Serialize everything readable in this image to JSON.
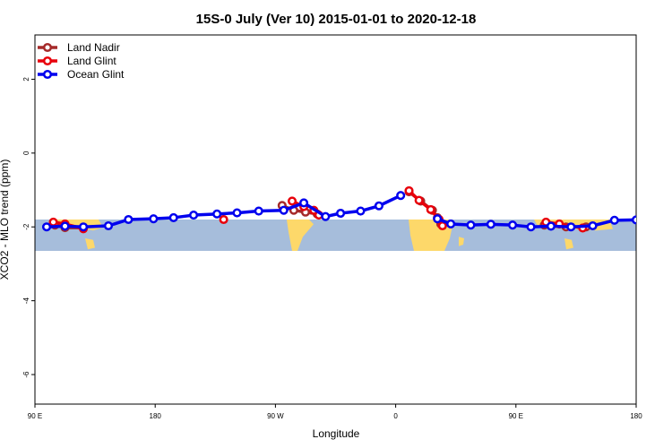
{
  "chart_data": {
    "type": "line",
    "title": "15S-0 July (Ver 10)   2015-01-01 to 2020-12-18",
    "xlabel": "Longitude",
    "ylabel": "XCO2 - MLO trend (ppm)",
    "xlim": [
      90,
      450
    ],
    "ylim": [
      -6.8,
      3.2
    ],
    "x_ticks": [
      {
        "value": 90,
        "label": "90 E"
      },
      {
        "value": 162,
        "label": "180"
      },
      {
        "value": 234,
        "label": "90 W"
      },
      {
        "value": 306,
        "label": "0"
      },
      {
        "value": 378,
        "label": "90 E"
      },
      {
        "value": 450,
        "label": "180"
      }
    ],
    "y_ticks": [
      {
        "value": 2,
        "label": "2"
      },
      {
        "value": 0,
        "label": "0"
      },
      {
        "value": -2,
        "label": "-2"
      },
      {
        "value": -4,
        "label": "-4"
      },
      {
        "value": -6,
        "label": "-6"
      }
    ],
    "legend_position": "top-left",
    "grid": false,
    "map_band": {
      "y_top": -1.8,
      "y_bottom": -2.65,
      "ocean_color": "#a6bddb",
      "land_color": "#fdd86a"
    },
    "series": [
      {
        "name": "Land Nadir",
        "color": "#a52a2a",
        "segments": [
          [
            [
              102,
              -1.95
            ],
            [
              108,
              -2.02
            ],
            [
              119,
              -2.02
            ]
          ],
          [
            [
              238,
              -1.42
            ],
            [
              245,
              -1.55
            ],
            [
              252,
              -1.6
            ],
            [
              259,
              -1.65
            ]
          ],
          [
            [
              314,
              -1.05
            ],
            [
              321,
              -1.3
            ],
            [
              328,
              -1.55
            ],
            [
              331,
              -1.75
            ],
            [
              333,
              -1.92
            ]
          ],
          [
            [
              395,
              -1.95
            ],
            [
              408,
              -2.0
            ],
            [
              420,
              -2.0
            ]
          ]
        ]
      },
      {
        "name": "Land Glint",
        "color": "#e8000b",
        "segments": [
          [
            [
              101,
              -1.87
            ],
            [
              108,
              -1.92
            ],
            [
              119,
              -2.05
            ]
          ],
          [
            [
              244,
              -1.3
            ],
            [
              251,
              -1.45
            ]
          ],
          [
            [
              257,
              -1.55
            ],
            [
              260,
              -1.68
            ]
          ],
          [
            [
              203,
              -1.8
            ]
          ],
          [
            [
              314,
              -1.02
            ],
            [
              320,
              -1.28
            ],
            [
              327,
              -1.53
            ],
            [
              332,
              -1.8
            ],
            [
              334,
              -1.97
            ]
          ],
          [
            [
              396,
              -1.87
            ],
            [
              404,
              -1.92
            ],
            [
              418,
              -2.03
            ]
          ]
        ]
      },
      {
        "name": "Ocean Glint",
        "color": "#0000ee",
        "segments": [
          [
            [
              97,
              -2.0
            ],
            [
              108,
              -1.98
            ],
            [
              119,
              -2.0
            ],
            [
              134,
              -1.97
            ],
            [
              146,
              -1.8
            ],
            [
              161,
              -1.78
            ],
            [
              173,
              -1.75
            ],
            [
              185,
              -1.68
            ],
            [
              199,
              -1.65
            ],
            [
              211,
              -1.62
            ],
            [
              224,
              -1.57
            ],
            [
              239,
              -1.55
            ],
            [
              251,
              -1.35
            ],
            [
              264,
              -1.72
            ],
            [
              273,
              -1.63
            ],
            [
              285,
              -1.57
            ],
            [
              296,
              -1.43
            ],
            [
              309,
              -1.15
            ]
          ],
          [
            [
              331,
              -1.78
            ],
            [
              339,
              -1.92
            ],
            [
              351,
              -1.95
            ],
            [
              363,
              -1.93
            ],
            [
              376,
              -1.95
            ],
            [
              387,
              -2.0
            ],
            [
              399,
              -1.98
            ],
            [
              411,
              -2.0
            ],
            [
              424,
              -1.97
            ],
            [
              437,
              -1.82
            ],
            [
              450,
              -1.81
            ]
          ]
        ]
      }
    ]
  }
}
